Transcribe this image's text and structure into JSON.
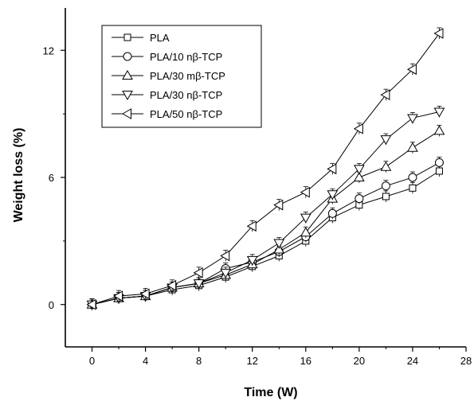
{
  "chart_data": {
    "type": "line",
    "title": "",
    "xlabel": "Time (W)",
    "ylabel": "Weight loss (%)",
    "xlim": [
      -2,
      28
    ],
    "ylim": [
      -2,
      14
    ],
    "x_ticks": [
      0,
      4,
      8,
      12,
      16,
      20,
      24,
      28
    ],
    "y_ticks": [
      0,
      6,
      12
    ],
    "x_tick_labels": [
      "0",
      "4",
      "8",
      "12",
      "16",
      "20",
      "24",
      "28"
    ],
    "y_tick_labels": [
      "0",
      "6",
      "12"
    ],
    "grid": false,
    "legend_position": "top-left",
    "x": [
      0,
      2,
      4,
      6,
      8,
      10,
      12,
      14,
      16,
      18,
      20,
      22,
      24,
      26
    ],
    "series": [
      {
        "name": "PLA",
        "marker": "square",
        "values": [
          0,
          0.3,
          0.4,
          0.7,
          0.9,
          1.3,
          1.8,
          2.3,
          3.0,
          4.1,
          4.7,
          5.1,
          5.5,
          6.3
        ]
      },
      {
        "name": "PLA/10 nβ-TCP",
        "marker": "circle",
        "values": [
          0,
          0.3,
          0.4,
          0.8,
          1.0,
          1.7,
          2.0,
          2.5,
          3.2,
          4.3,
          5.0,
          5.6,
          6.0,
          6.7
        ]
      },
      {
        "name": "PLA/30 mβ-TCP",
        "marker": "triangle-up",
        "values": [
          0,
          0.3,
          0.4,
          0.8,
          1.0,
          1.4,
          1.9,
          2.6,
          3.4,
          5.0,
          6.0,
          6.5,
          7.4,
          8.2
        ]
      },
      {
        "name": "PLA/30 nβ-TCP",
        "marker": "triangle-down",
        "values": [
          0,
          0.3,
          0.4,
          0.8,
          1.0,
          1.5,
          2.1,
          2.9,
          4.1,
          5.2,
          6.4,
          7.8,
          8.8,
          9.1
        ]
      },
      {
        "name": "PLA/50 nβ-TCP",
        "marker": "triangle-left",
        "values": [
          0,
          0.4,
          0.5,
          0.9,
          1.5,
          2.3,
          3.7,
          4.7,
          5.3,
          6.4,
          8.3,
          9.9,
          11.1,
          12.8
        ]
      }
    ]
  }
}
